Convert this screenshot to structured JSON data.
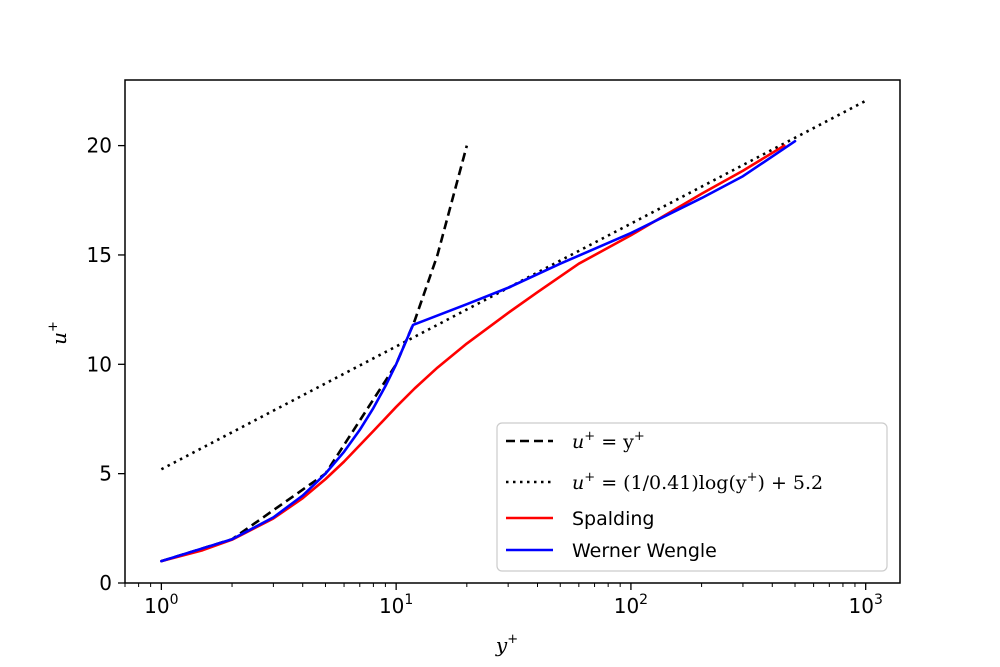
{
  "chart_data": {
    "type": "line",
    "xscale": "log",
    "xlim": [
      0.7,
      1400
    ],
    "ylim": [
      0,
      23
    ],
    "xlabel": "y+",
    "ylabel": "u+",
    "grid": false,
    "legend_position": "lower-right",
    "x_ticks": [
      {
        "value": 1,
        "base": "10",
        "exp": "0"
      },
      {
        "value": 10,
        "base": "10",
        "exp": "1"
      },
      {
        "value": 100,
        "base": "10",
        "exp": "2"
      },
      {
        "value": 1000,
        "base": "10",
        "exp": "3"
      }
    ],
    "y_ticks": [
      {
        "value": 0,
        "label": "0"
      },
      {
        "value": 5,
        "label": "5"
      },
      {
        "value": 10,
        "label": "10"
      },
      {
        "value": 15,
        "label": "15"
      },
      {
        "value": 20,
        "label": "20"
      }
    ],
    "series": [
      {
        "name": "u+ = y+",
        "color": "#000000",
        "dash": "dashed",
        "x": [
          1,
          2,
          5,
          10,
          12,
          15,
          20
        ],
        "y": [
          1,
          2,
          5,
          10,
          12,
          15,
          20
        ]
      },
      {
        "name": "u+ = (1/0.41)log(y+) + 5.2",
        "color": "#000000",
        "dash": "dotted",
        "x": [
          1,
          10,
          100,
          1000
        ],
        "y": [
          5.2,
          10.816,
          16.432,
          22.048
        ]
      },
      {
        "name": "Spalding",
        "color": "#ff0000",
        "dash": "solid",
        "x": [
          1,
          1.5,
          2,
          3,
          4,
          5,
          6,
          8,
          10,
          12,
          15,
          20,
          30,
          40,
          60,
          100,
          200,
          300,
          450
        ],
        "y": [
          1.0,
          1.5,
          1.98,
          2.95,
          3.88,
          4.75,
          5.55,
          6.95,
          8.05,
          8.9,
          9.85,
          10.95,
          12.35,
          13.3,
          14.6,
          15.9,
          17.8,
          18.85,
          20.0
        ]
      },
      {
        "name": "Werner Wengle",
        "color": "#0000ff",
        "dash": "solid",
        "x": [
          1,
          2,
          3,
          4,
          5,
          6,
          7,
          8,
          9,
          10,
          11.8,
          20,
          30,
          50,
          100,
          200,
          300,
          500
        ],
        "y": [
          1,
          2,
          3,
          4,
          5,
          6,
          7,
          8,
          9,
          10,
          11.8,
          12.75,
          13.5,
          14.6,
          16.0,
          17.6,
          18.6,
          20.2
        ]
      }
    ],
    "legend": {
      "entries": [
        {
          "lhs_main": "u",
          "lhs_sup": "+",
          "rest": " = y",
          "rest_sup": "+",
          "tail": ""
        },
        {
          "lhs_main": "u",
          "lhs_sup": "+",
          "rest": " = (1/0.41)log(y",
          "rest_sup": "+",
          "tail": ") + 5.2"
        },
        {
          "plain": "Spalding"
        },
        {
          "plain": "Werner Wengle"
        }
      ]
    }
  }
}
